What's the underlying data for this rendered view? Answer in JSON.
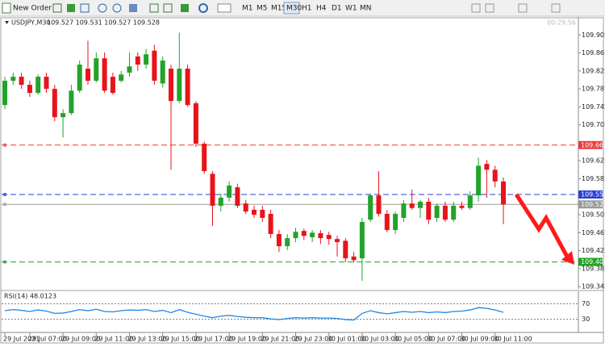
{
  "toolbar": {
    "new_order": "New Order",
    "timeframes": [
      "M1",
      "M5",
      "M15",
      "M30",
      "H1",
      "H4",
      "D1",
      "W1",
      "MN"
    ],
    "active_timeframe": "M30"
  },
  "chart_data": [
    {
      "type": "candlestick",
      "title": "USDJPY,M30",
      "quote": "109.527 109.531 109.527 109.528",
      "clock": "00:29:56",
      "categories": [
        "29 Jul 2021",
        null,
        null,
        "29 Jul 07:00",
        null,
        null,
        null,
        "29 Jul 09:00",
        null,
        null,
        null,
        "29 Jul 11:00",
        null,
        null,
        null,
        "29 Jul 13:00",
        null,
        null,
        null,
        "29 Jul 15:00",
        null,
        null,
        null,
        "29 Jul 17:00",
        null,
        null,
        null,
        "29 Jul 19:00",
        null,
        null,
        null,
        "29 Jul 21:00",
        null,
        null,
        null,
        "29 Jul 23:00",
        null,
        null,
        null,
        "30 Jul 01:00",
        null,
        null,
        null,
        "30 Jul 03:00",
        null,
        null,
        null,
        "30 Jul 05:00",
        null,
        null,
        null,
        "30 Jul 07:00",
        null,
        null,
        null,
        "30 Jul 09:00",
        null,
        null,
        null,
        "30 Jul 11:00",
        null
      ],
      "open": [
        109.749,
        109.803,
        109.812,
        109.794,
        109.776,
        109.812,
        109.785,
        109.722,
        109.731,
        109.781,
        109.83,
        109.803,
        109.853,
        109.812,
        109.803,
        109.821,
        109.857,
        109.839,
        109.87,
        109.797,
        109.83,
        109.758,
        109.83,
        109.753,
        109.663,
        109.596,
        109.525,
        109.543,
        109.566,
        109.53,
        109.516,
        109.516,
        109.507,
        109.462,
        109.435,
        109.453,
        109.469,
        109.455,
        109.464,
        109.46,
        109.451,
        109.447,
        109.412,
        109.408,
        109.494,
        109.548,
        109.507,
        109.471,
        109.498,
        109.53,
        109.52,
        109.534,
        109.498,
        109.525,
        109.494,
        109.525,
        109.52,
        109.548,
        109.618,
        109.605,
        109.579
      ],
      "high": [
        109.812,
        109.821,
        109.821,
        109.803,
        109.817,
        109.821,
        109.794,
        109.74,
        109.794,
        109.848,
        109.892,
        109.866,
        109.866,
        109.821,
        109.825,
        109.866,
        109.866,
        109.874,
        109.883,
        109.857,
        109.839,
        109.91,
        109.839,
        109.758,
        109.668,
        109.602,
        109.552,
        109.579,
        109.574,
        109.538,
        109.525,
        109.525,
        109.516,
        109.471,
        109.462,
        109.476,
        109.474,
        109.471,
        109.471,
        109.467,
        109.458,
        109.453,
        109.422,
        109.498,
        109.552,
        109.602,
        109.516,
        109.512,
        109.538,
        109.561,
        109.538,
        109.543,
        109.53,
        109.534,
        109.534,
        109.534,
        109.557,
        109.632,
        109.627,
        109.614,
        109.588
      ],
      "low": [
        109.74,
        109.794,
        109.785,
        109.767,
        109.772,
        109.776,
        109.713,
        109.677,
        109.727,
        109.776,
        109.794,
        109.799,
        109.776,
        109.772,
        109.799,
        109.812,
        109.825,
        109.83,
        109.794,
        109.788,
        109.605,
        109.753,
        109.745,
        109.656,
        109.596,
        109.48,
        109.512,
        109.534,
        109.52,
        109.507,
        109.498,
        109.489,
        109.453,
        109.422,
        109.426,
        109.444,
        109.449,
        109.444,
        109.44,
        109.438,
        109.412,
        109.399,
        109.399,
        109.358,
        109.489,
        109.501,
        109.466,
        109.462,
        109.489,
        109.516,
        109.498,
        109.484,
        109.489,
        109.489,
        109.489,
        109.516,
        109.516,
        109.534,
        109.543,
        109.566,
        109.484
      ],
      "close": [
        109.803,
        109.812,
        109.794,
        109.776,
        109.812,
        109.785,
        109.722,
        109.731,
        109.781,
        109.839,
        109.803,
        109.853,
        109.781,
        109.776,
        109.817,
        109.835,
        109.839,
        109.862,
        109.803,
        109.848,
        109.758,
        109.83,
        109.749,
        109.663,
        109.602,
        109.525,
        109.543,
        109.57,
        109.525,
        109.512,
        109.505,
        109.498,
        109.462,
        109.435,
        109.453,
        109.467,
        109.458,
        109.465,
        109.453,
        109.451,
        109.444,
        109.408,
        109.404,
        109.489,
        109.548,
        109.507,
        109.471,
        109.507,
        109.53,
        109.52,
        109.534,
        109.494,
        109.525,
        109.494,
        109.525,
        109.52,
        109.548,
        109.614,
        109.605,
        109.579,
        109.528
      ],
      "up_color": "#22a32a",
      "down_color": "#e8131b",
      "ylim": [
        109.34,
        109.945
      ],
      "yticks": [
        109.905,
        109.865,
        109.825,
        109.785,
        109.745,
        109.705,
        109.625,
        109.585,
        109.505,
        109.465,
        109.425,
        109.385,
        109.345
      ],
      "levels": [
        {
          "value": 109.66,
          "label": "109.660",
          "color": "#ee3b3b",
          "style": "dashed"
        },
        {
          "value": 109.55,
          "label": "109.550",
          "color": "#2a3fd6",
          "style": "dashed"
        },
        {
          "value": 109.528,
          "label": "109.528",
          "color": "#9a9a9a",
          "style": "solid"
        },
        {
          "value": 109.4,
          "label": "109.400",
          "color": "#23a323",
          "style": "dashed"
        }
      ]
    },
    {
      "type": "line",
      "title": "RSI(14) 48.0123",
      "color": "#1e88e5",
      "values": [
        52,
        55,
        53,
        50,
        54,
        51,
        45,
        46,
        50,
        55,
        52,
        56,
        50,
        49,
        52,
        54,
        53,
        55,
        50,
        53,
        47,
        55,
        48,
        43,
        38,
        34,
        38,
        40,
        37,
        35,
        34,
        34,
        31,
        29,
        32,
        34,
        33,
        34,
        33,
        33,
        32,
        29,
        28,
        45,
        52,
        47,
        44,
        47,
        50,
        48,
        50,
        47,
        49,
        47,
        50,
        51,
        54,
        60,
        58,
        54,
        48.0123
      ],
      "ylim": [
        0,
        100
      ],
      "yticks": [
        70,
        30
      ]
    }
  ]
}
